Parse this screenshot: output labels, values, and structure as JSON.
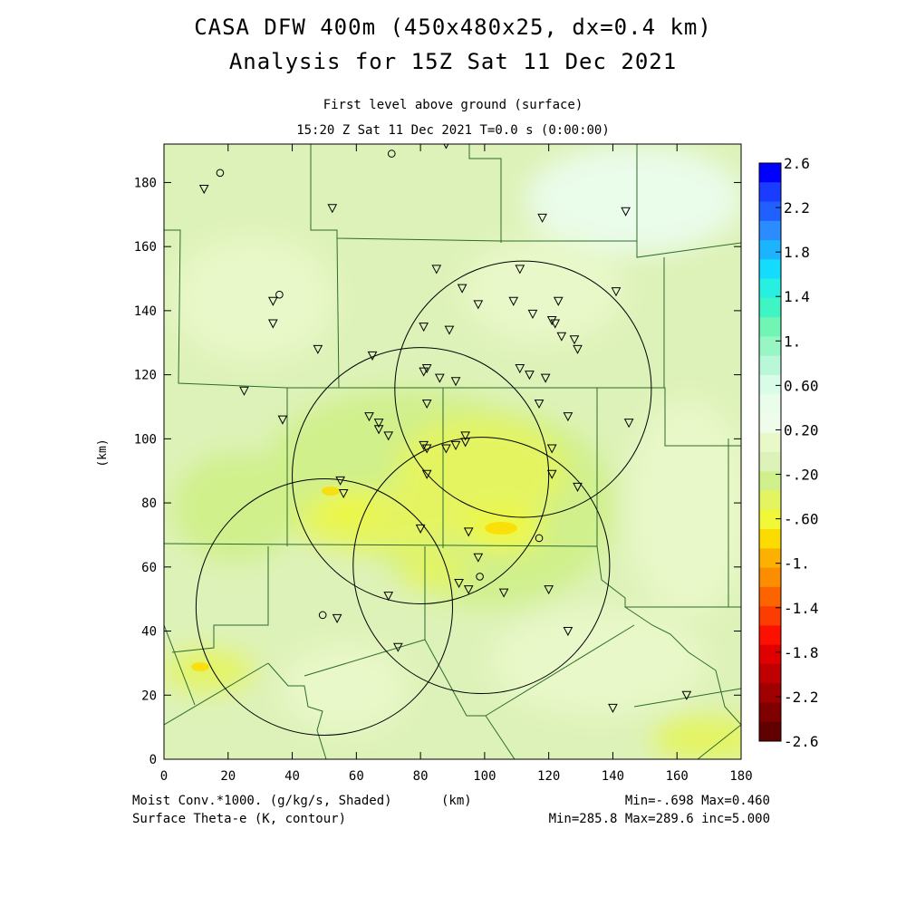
{
  "title_line1": "CASA DFW 400m (450x480x25, dx=0.4 km)",
  "title_line2": "Analysis for 15Z Sat 11 Dec 2021",
  "subtitle_line1": "First level above ground (surface)",
  "subtitle_line2": "15:20 Z Sat 11 Dec 2021   T=0.0 s (0:00:00)",
  "axes": {
    "x_label": "(km)",
    "y_label": "(km)",
    "x_range": [
      0,
      180
    ],
    "y_range": [
      0,
      192
    ],
    "x_ticks": [
      "0",
      "20",
      "40",
      "60",
      "80",
      "100",
      "120",
      "140",
      "160",
      "180"
    ],
    "y_ticks": [
      "0",
      "20",
      "40",
      "60",
      "80",
      "100",
      "120",
      "140",
      "160",
      "180"
    ]
  },
  "colorbar": {
    "labels": [
      "2.6",
      "2.2",
      "1.8",
      "1.4",
      "1.",
      "0.60",
      "0.20",
      "-.20",
      "-.60",
      "-1.",
      "-1.4",
      "-1.8",
      "-2.2",
      "-2.6"
    ],
    "colors": [
      "#0000ff",
      "#1a3cff",
      "#2060ff",
      "#2a8cff",
      "#1cb4ff",
      "#14dcff",
      "#28f0e0",
      "#40f5c4",
      "#70f5b4",
      "#98f5c4",
      "#b8f8d8",
      "#d8fce8",
      "#eafcea",
      "#f0fcea",
      "#e8f8c8",
      "#ddf2b8",
      "#d0f08c",
      "#e4f460",
      "#f0f838",
      "#fcdc00",
      "#fcb000",
      "#fc8c00",
      "#fc6400",
      "#fc3c00",
      "#fc1000",
      "#e00000",
      "#c00000",
      "#a00000",
      "#800000",
      "#600000"
    ]
  },
  "footer": {
    "left_line1": "Moist Conv.*1000. (g/kg/s, Shaded)",
    "left_line2": "Surface Theta-e (K, contour)",
    "units": "(km)",
    "right_line1": "Min=-.698 Max=0.460",
    "right_line2": "Min=285.8 Max=289.6 inc=5.000"
  },
  "radar_rings": [
    {
      "x": 80,
      "y": 88.5,
      "r": 40
    },
    {
      "x": 99,
      "y": 60.5,
      "r": 40
    },
    {
      "x": 112,
      "y": 115.5,
      "r": 40
    },
    {
      "x": 50,
      "y": 47.5,
      "r": 40
    }
  ],
  "stations": {
    "triangles": [
      [
        12.5,
        178
      ],
      [
        52.5,
        172
      ],
      [
        88,
        192
      ],
      [
        118,
        169
      ],
      [
        144,
        171
      ],
      [
        85,
        153
      ],
      [
        111,
        153
      ],
      [
        34,
        143
      ],
      [
        93,
        147
      ],
      [
        98,
        142
      ],
      [
        109,
        143
      ],
      [
        115,
        139
      ],
      [
        121,
        137
      ],
      [
        123,
        143
      ],
      [
        141,
        146
      ],
      [
        34,
        136
      ],
      [
        81,
        135
      ],
      [
        89,
        134
      ],
      [
        122,
        136
      ],
      [
        124,
        132
      ],
      [
        128,
        131
      ],
      [
        48,
        128
      ],
      [
        65,
        126
      ],
      [
        129,
        128
      ],
      [
        82,
        122
      ],
      [
        81,
        121
      ],
      [
        86,
        119
      ],
      [
        91,
        118
      ],
      [
        111,
        122
      ],
      [
        114,
        120
      ],
      [
        119,
        119
      ],
      [
        25,
        115
      ],
      [
        82,
        111
      ],
      [
        117,
        111
      ],
      [
        37,
        106
      ],
      [
        64,
        107
      ],
      [
        67,
        105
      ],
      [
        126,
        107
      ],
      [
        145,
        105
      ],
      [
        67,
        103
      ],
      [
        70,
        101
      ],
      [
        94,
        101
      ],
      [
        94,
        99
      ],
      [
        81,
        98
      ],
      [
        82,
        97
      ],
      [
        88,
        97
      ],
      [
        91,
        98
      ],
      [
        121,
        97
      ],
      [
        82,
        89
      ],
      [
        121,
        89
      ],
      [
        129,
        85
      ],
      [
        55,
        87
      ],
      [
        56,
        83
      ],
      [
        80,
        72
      ],
      [
        95,
        71
      ],
      [
        98,
        63
      ],
      [
        92,
        55
      ],
      [
        95,
        53
      ],
      [
        106,
        52
      ],
      [
        70,
        51
      ],
      [
        120,
        53
      ],
      [
        54,
        44
      ],
      [
        73,
        35
      ],
      [
        126,
        40
      ],
      [
        140,
        16
      ],
      [
        163,
        20
      ]
    ],
    "circles": [
      [
        17.5,
        183
      ],
      [
        71,
        189
      ],
      [
        36,
        145
      ],
      [
        49.5,
        45
      ],
      [
        98.5,
        57
      ],
      [
        117,
        69
      ]
    ]
  }
}
